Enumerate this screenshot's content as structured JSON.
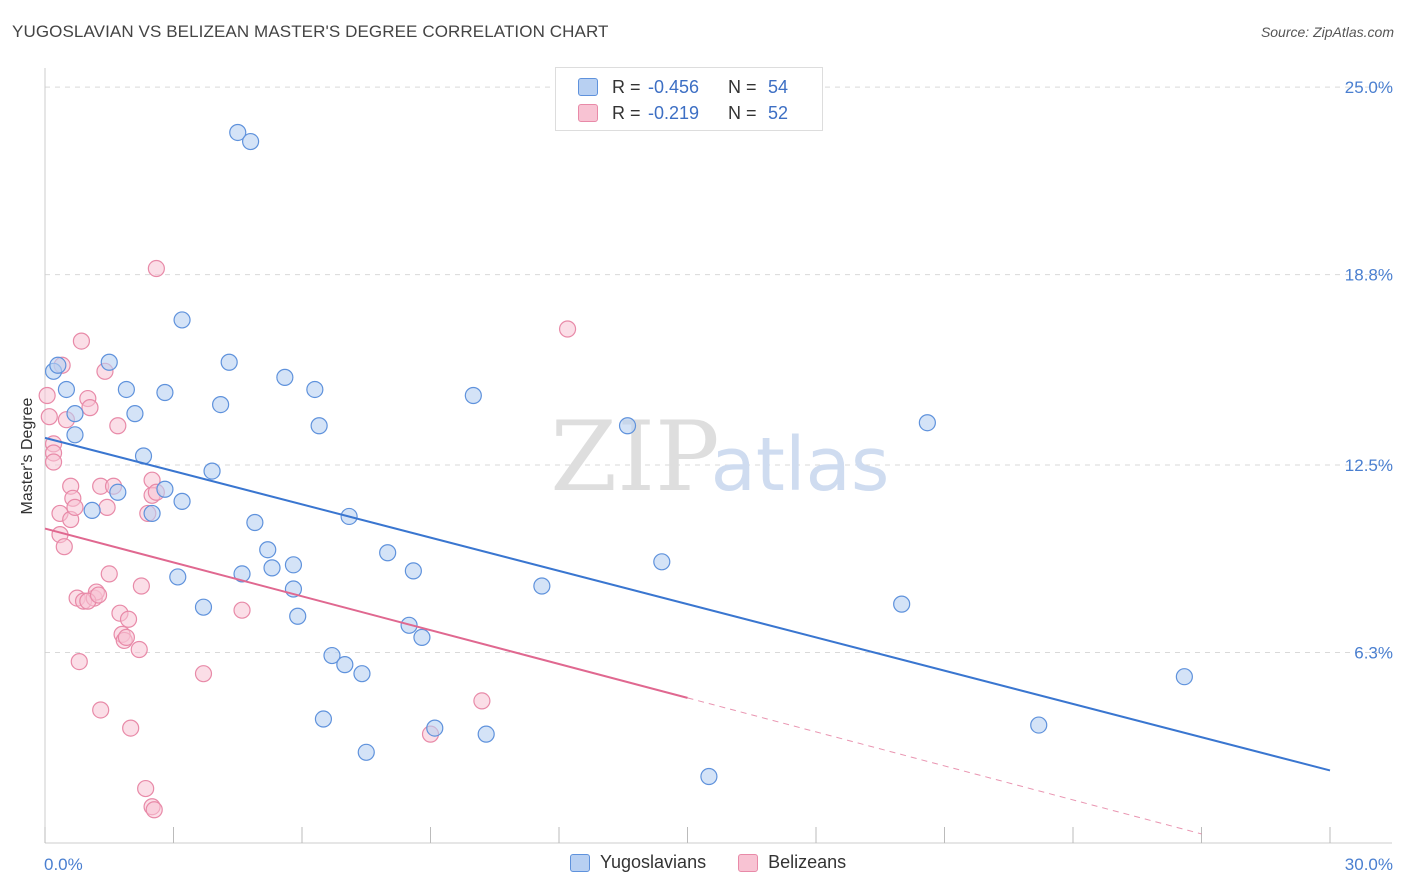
{
  "title": "YUGOSLAVIAN VS BELIZEAN MASTER'S DEGREE CORRELATION CHART",
  "source": "Source: ZipAtlas.com",
  "watermark": {
    "zip": "ZIP",
    "atlas": "atlas"
  },
  "legend": [
    {
      "r_label": "R =",
      "r_value": "-0.456",
      "n_label": "N =",
      "n_value": "54"
    },
    {
      "r_label": "R =",
      "r_value": "-0.219",
      "n_label": "N =",
      "n_value": "52"
    }
  ],
  "bottom_legend": [
    "Yugoslavians",
    "Belizeans"
  ],
  "colors": {
    "blue_fill": "#b8d0f2",
    "blue_stroke": "#5f92dc",
    "blue_line": "#3a76d0",
    "pink_fill": "#f8c3d3",
    "pink_stroke": "#e88aa8",
    "pink_line": "#e06890",
    "grid": "#d9d9d9",
    "tick_label": "#4a7fd0"
  },
  "chart_data": {
    "type": "scatter",
    "title": "YUGOSLAVIAN VS BELIZEAN MASTER'S DEGREE CORRELATION CHART",
    "xlabel": "",
    "ylabel": "Master's Degree",
    "xlim": [
      0,
      30
    ],
    "ylim": [
      0,
      25.5
    ],
    "x_tick_labels": [
      "0.0%",
      "30.0%"
    ],
    "y_ticks": [
      6.3,
      12.5,
      18.8,
      25.0
    ],
    "y_tick_labels": [
      "6.3%",
      "12.5%",
      "18.8%",
      "25.0%"
    ],
    "series": [
      {
        "name": "Yugoslavians",
        "r": -0.456,
        "n": 54,
        "trend": {
          "x": [
            0.0,
            30.0
          ],
          "y": [
            13.4,
            2.4
          ]
        },
        "points": [
          [
            0.2,
            15.6
          ],
          [
            0.3,
            15.8
          ],
          [
            0.5,
            15.0
          ],
          [
            0.7,
            14.2
          ],
          [
            0.7,
            13.5
          ],
          [
            1.1,
            11.0
          ],
          [
            1.7,
            11.6
          ],
          [
            1.5,
            15.9
          ],
          [
            1.9,
            15.0
          ],
          [
            2.1,
            14.2
          ],
          [
            2.3,
            12.8
          ],
          [
            2.5,
            10.9
          ],
          [
            2.8,
            11.7
          ],
          [
            2.8,
            14.9
          ],
          [
            3.1,
            8.8
          ],
          [
            3.2,
            11.3
          ],
          [
            3.2,
            17.3
          ],
          [
            3.7,
            7.8
          ],
          [
            3.9,
            12.3
          ],
          [
            4.1,
            14.5
          ],
          [
            4.3,
            15.9
          ],
          [
            4.5,
            23.5
          ],
          [
            4.8,
            23.2
          ],
          [
            4.9,
            10.6
          ],
          [
            5.2,
            9.7
          ],
          [
            5.3,
            9.1
          ],
          [
            5.6,
            15.4
          ],
          [
            5.8,
            8.4
          ],
          [
            5.9,
            7.5
          ],
          [
            6.3,
            15.0
          ],
          [
            6.4,
            13.8
          ],
          [
            6.5,
            4.1
          ],
          [
            6.7,
            6.2
          ],
          [
            7.0,
            5.9
          ],
          [
            7.1,
            10.8
          ],
          [
            7.4,
            5.6
          ],
          [
            7.5,
            3.0
          ],
          [
            8.0,
            9.6
          ],
          [
            8.5,
            7.2
          ],
          [
            8.6,
            9.0
          ],
          [
            8.8,
            6.8
          ],
          [
            9.1,
            3.8
          ],
          [
            10.0,
            14.8
          ],
          [
            10.3,
            3.6
          ],
          [
            11.6,
            8.5
          ],
          [
            13.6,
            13.8
          ],
          [
            14.4,
            9.3
          ],
          [
            15.5,
            2.2
          ],
          [
            20.0,
            7.9
          ],
          [
            20.6,
            13.9
          ],
          [
            23.2,
            3.9
          ],
          [
            26.6,
            5.5
          ],
          [
            4.6,
            8.9
          ],
          [
            5.8,
            9.2
          ]
        ]
      },
      {
        "name": "Belizeans",
        "r": -0.219,
        "n": 52,
        "trend": {
          "x": [
            0.0,
            15.0
          ],
          "y": [
            10.4,
            4.8
          ]
        },
        "trend_dashed": {
          "x": [
            15.0,
            27.0
          ],
          "y": [
            4.8,
            0.3
          ]
        },
        "points": [
          [
            0.05,
            14.8
          ],
          [
            0.1,
            14.1
          ],
          [
            0.2,
            13.2
          ],
          [
            0.2,
            12.9
          ],
          [
            0.2,
            12.6
          ],
          [
            0.35,
            10.9
          ],
          [
            0.35,
            10.2
          ],
          [
            0.4,
            15.8
          ],
          [
            0.45,
            9.8
          ],
          [
            0.5,
            14.0
          ],
          [
            0.6,
            10.7
          ],
          [
            0.6,
            11.8
          ],
          [
            0.65,
            11.4
          ],
          [
            0.7,
            11.1
          ],
          [
            0.75,
            8.1
          ],
          [
            0.8,
            6.0
          ],
          [
            0.85,
            16.6
          ],
          [
            0.9,
            8.0
          ],
          [
            1.0,
            14.7
          ],
          [
            1.05,
            14.4
          ],
          [
            1.15,
            8.1
          ],
          [
            1.2,
            8.3
          ],
          [
            1.3,
            11.8
          ],
          [
            1.3,
            4.4
          ],
          [
            1.4,
            15.6
          ],
          [
            1.45,
            11.1
          ],
          [
            1.5,
            8.9
          ],
          [
            1.6,
            11.8
          ],
          [
            1.7,
            13.8
          ],
          [
            1.75,
            7.6
          ],
          [
            1.8,
            6.9
          ],
          [
            1.85,
            6.7
          ],
          [
            1.9,
            6.8
          ],
          [
            1.95,
            7.4
          ],
          [
            2.0,
            3.8
          ],
          [
            2.2,
            6.4
          ],
          [
            2.25,
            8.5
          ],
          [
            2.35,
            1.8
          ],
          [
            2.4,
            10.9
          ],
          [
            2.5,
            12.0
          ],
          [
            2.5,
            1.2
          ],
          [
            2.55,
            1.1
          ],
          [
            2.6,
            19.0
          ],
          [
            2.5,
            11.5
          ],
          [
            3.7,
            5.6
          ],
          [
            4.6,
            7.7
          ],
          [
            9.0,
            3.6
          ],
          [
            10.2,
            4.7
          ],
          [
            12.2,
            17.0
          ],
          [
            1.0,
            8.0
          ],
          [
            1.25,
            8.2
          ],
          [
            2.6,
            11.6
          ]
        ]
      }
    ]
  }
}
